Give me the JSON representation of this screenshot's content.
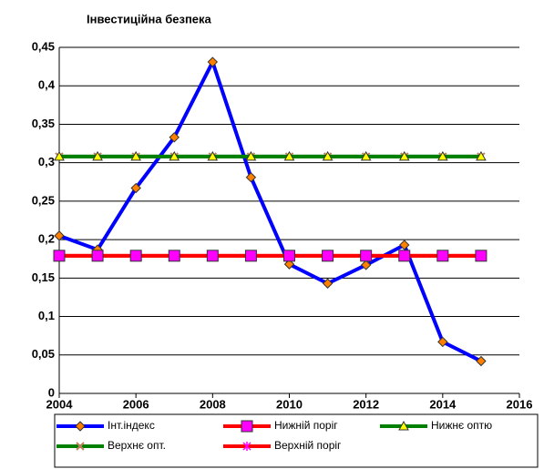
{
  "chart_data": {
    "type": "line",
    "title": "Інвестиційна безпека",
    "x": [
      2004,
      2005,
      2006,
      2007,
      2008,
      2009,
      2010,
      2011,
      2012,
      2013,
      2014,
      2015
    ],
    "series": [
      {
        "name": "Верхнє опт.",
        "color": "#008000",
        "marker": "x",
        "marker_color": "#c08060",
        "values": [
          0.308,
          0.308,
          0.308,
          0.308,
          0.308,
          0.308,
          0.308,
          0.308,
          0.308,
          0.308,
          0.308,
          0.308
        ]
      },
      {
        "name": "Верхній поріг",
        "color": "#ff0000",
        "marker": "star",
        "marker_color": "#ff00ff",
        "values": [
          0.179,
          0.179,
          0.179,
          0.179,
          0.179,
          0.179,
          0.179,
          0.179,
          0.179,
          0.179,
          0.179,
          0.179
        ]
      },
      {
        "name": "Інт.індекс",
        "color": "#0000ff",
        "marker": "diamond",
        "marker_color": "#ff8000",
        "values": [
          0.205,
          0.187,
          0.267,
          0.333,
          0.431,
          0.281,
          0.168,
          0.143,
          0.167,
          0.193,
          0.067,
          0.042
        ]
      },
      {
        "name": "Нижній поріг",
        "color": "#ff0000",
        "marker": "square",
        "marker_color": "#ff00ff",
        "values": [
          0.179,
          0.179,
          0.179,
          0.179,
          0.179,
          0.179,
          0.179,
          0.179,
          0.179,
          0.179,
          0.179,
          0.179
        ]
      },
      {
        "name": "Нижнє оптю",
        "color": "#008000",
        "marker": "triangle",
        "marker_color": "#ffff00",
        "values": [
          0.308,
          0.308,
          0.308,
          0.308,
          0.308,
          0.308,
          0.308,
          0.308,
          0.308,
          0.308,
          0.308,
          0.308
        ]
      }
    ],
    "legend_order": [
      2,
      3,
      4,
      0,
      1
    ],
    "xlim": [
      2004,
      2016
    ],
    "xticks": [
      2004,
      2006,
      2008,
      2010,
      2012,
      2014,
      2016
    ],
    "ylim": [
      0,
      0.45
    ],
    "yticks": [
      0,
      {
        "value": 0.05,
        "label": "0,05"
      },
      {
        "value": 0.1,
        "label": "0,1"
      },
      {
        "value": 0.15,
        "label": "0,15"
      },
      {
        "value": 0.2,
        "label": "0,2"
      },
      {
        "value": 0.25,
        "label": "0,25"
      },
      {
        "value": 0.3,
        "label": "0,3"
      },
      {
        "value": 0.35,
        "label": "0,35"
      },
      {
        "value": 0.4,
        "label": "0,4"
      },
      {
        "value": 0.45,
        "label": "0,45"
      }
    ],
    "grid": true
  }
}
